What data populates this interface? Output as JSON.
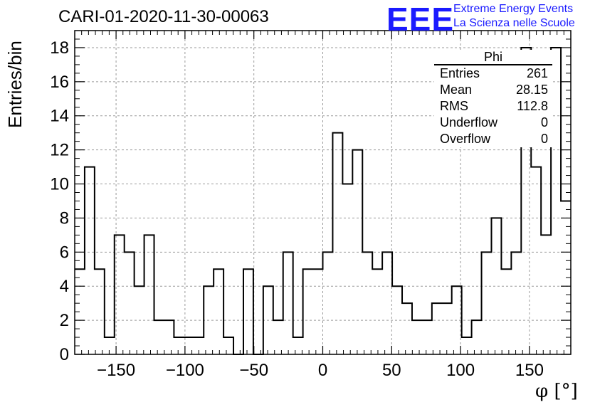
{
  "header": {
    "title": "CARI-01-2020-11-30-00063",
    "logo_text": "EEE",
    "logo_line1": "Extreme Energy Events",
    "logo_line2": "La Scienza nelle Scuole",
    "logo_color": "#1a1aff"
  },
  "stats_box": {
    "title": "Phi",
    "rows": [
      {
        "label": "Entries",
        "value": "261"
      },
      {
        "label": "Mean",
        "value": "28.15"
      },
      {
        "label": "RMS",
        "value": "112.8"
      },
      {
        "label": "Underflow",
        "value": "0"
      },
      {
        "label": "Overflow",
        "value": "0"
      }
    ]
  },
  "chart_data": {
    "type": "bar",
    "title": "CARI-01-2020-11-30-00063",
    "xlabel": "φ [°]",
    "ylabel": "Entries/bin",
    "xlim": [
      -180,
      180
    ],
    "ylim": [
      0,
      19
    ],
    "bin_width": 7.2,
    "grid": true,
    "x_ticks": [
      -150,
      -100,
      -50,
      0,
      50,
      100,
      150
    ],
    "x_tick_labels": [
      "−150",
      "−100",
      "−50",
      "0",
      "50",
      "100",
      "150"
    ],
    "y_ticks": [
      0,
      2,
      4,
      6,
      8,
      10,
      12,
      14,
      16,
      18
    ],
    "y_tick_labels": [
      "0",
      "2",
      "4",
      "6",
      "8",
      "10",
      "12",
      "14",
      "16",
      "18"
    ],
    "bin_edges": [
      -180,
      -172.8,
      -165.6,
      -158.4,
      -151.2,
      -144,
      -136.8,
      -129.6,
      -122.4,
      -115.2,
      -108,
      -100.8,
      -93.6,
      -86.4,
      -79.2,
      -72,
      -64.8,
      -57.6,
      -50.4,
      -43.2,
      -36,
      -28.8,
      -21.6,
      -14.4,
      -7.2,
      0,
      7.2,
      14.4,
      21.6,
      28.8,
      36,
      43.2,
      50.4,
      57.6,
      64.8,
      72,
      79.2,
      86.4,
      93.6,
      100.8,
      108,
      115.2,
      122.4,
      129.6,
      136.8,
      144,
      151.2,
      158.4,
      165.6,
      172.8,
      180
    ],
    "values": [
      5,
      11,
      5,
      1,
      7,
      6,
      4,
      7,
      2,
      2,
      1,
      1,
      1,
      4,
      5,
      1,
      0,
      5,
      0,
      4,
      2,
      6,
      1,
      5,
      5,
      6,
      13,
      10,
      12,
      6,
      5,
      6,
      4,
      3,
      2,
      2,
      3,
      3,
      4,
      1,
      2,
      6,
      8,
      5,
      6,
      18,
      11,
      7,
      18,
      9
    ],
    "line_color": "#000000",
    "grid_color": "#9a9a9a"
  }
}
